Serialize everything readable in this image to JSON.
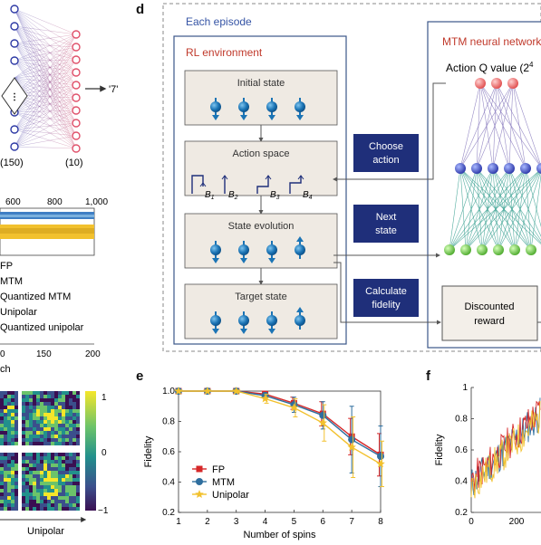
{
  "panel_letters": {
    "d": "d",
    "e": "e",
    "f": "f"
  },
  "network_top": {
    "arrow_label": "'7'",
    "hidden_count": "(150)",
    "output_count": "(10)"
  },
  "training_strip": {
    "ticks": [
      "600",
      "800",
      "1,000"
    ]
  },
  "legend_left": {
    "items": [
      "FP",
      "MTM",
      "Quantized MTM",
      "Unipolar",
      "Quantized unipolar"
    ],
    "xticks": [
      "0",
      "150",
      "200"
    ],
    "xlabel": "ch"
  },
  "heatmap": {
    "colorbar_ticks": [
      "1",
      "0",
      "−1"
    ],
    "xlabel": "Unipolar"
  },
  "panel_d": {
    "episode_title": "Each episode",
    "env_title": "RL environment",
    "env_boxes": {
      "initial": "Initial state",
      "action": "Action space",
      "evolution": "State evolution",
      "target": "Target state"
    },
    "action_labels": [
      "B",
      "B",
      "B",
      "B"
    ],
    "action_subs": [
      "1",
      "2",
      "3",
      "4"
    ],
    "mtm_title": "MTM neural network",
    "q_label": "Action Q value (2",
    "q_sup": "4",
    "buttons": {
      "choose": [
        "Choose",
        "action"
      ],
      "next": [
        "Next",
        "state"
      ],
      "calc": [
        "Calculate",
        "fidelity"
      ]
    },
    "reward": "Discounted reward"
  },
  "colors": {
    "navy": "#1f2f7a",
    "env_red": "#c0392b",
    "panel_blue": "#3554a5",
    "spin": "#1b74b5"
  },
  "chart_data": [
    {
      "type": "line",
      "panel": "e",
      "xlabel": "Number of spins",
      "ylabel": "Fidelity",
      "x": [
        1,
        2,
        3,
        4,
        5,
        6,
        7,
        8
      ],
      "xlim": [
        1,
        8
      ],
      "ylim": [
        0.2,
        1.0
      ],
      "yticks": [
        "0.2",
        "0.4",
        "0.6",
        "0.8",
        "1.0"
      ],
      "xticks": [
        "1",
        "2",
        "3",
        "4",
        "5",
        "6",
        "7",
        "8"
      ],
      "legend_position": "lower-left",
      "series": [
        {
          "name": "FP",
          "color": "#d62728",
          "marker": "square",
          "values": [
            1.0,
            1.0,
            1.0,
            0.98,
            0.92,
            0.85,
            0.7,
            0.58
          ],
          "err": [
            0,
            0,
            0.01,
            0.02,
            0.04,
            0.08,
            0.12,
            0.14
          ]
        },
        {
          "name": "MTM",
          "color": "#2f6e9e",
          "marker": "circle",
          "values": [
            1.0,
            1.0,
            1.0,
            0.97,
            0.91,
            0.84,
            0.68,
            0.57
          ],
          "err": [
            0,
            0,
            0.01,
            0.02,
            0.05,
            0.09,
            0.22,
            0.2
          ]
        },
        {
          "name": "Unipolar",
          "color": "#f2c12e",
          "marker": "star",
          "values": [
            1.0,
            1.0,
            1.0,
            0.95,
            0.89,
            0.79,
            0.63,
            0.52
          ],
          "err": [
            0,
            0,
            0.01,
            0.03,
            0.06,
            0.12,
            0.2,
            0.15
          ]
        }
      ]
    },
    {
      "type": "line",
      "panel": "f",
      "ylabel": "Fidelity",
      "xticks": [
        "0",
        "200"
      ],
      "yticks": [
        "0.2",
        "0.4",
        "0.6",
        "0.8",
        "1"
      ],
      "ylim": [
        0.2,
        1.0
      ]
    }
  ]
}
